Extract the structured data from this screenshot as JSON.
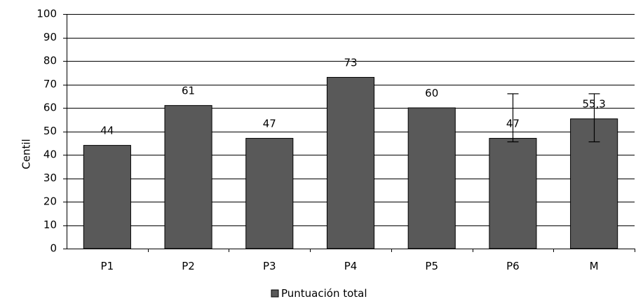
{
  "chart_data": {
    "type": "bar",
    "title": "",
    "xlabel": "",
    "ylabel": "Centil",
    "categories": [
      "P1",
      "P2",
      "P3",
      "P4",
      "P5",
      "P6",
      "M"
    ],
    "series": [
      {
        "name": "Puntuación total",
        "values": [
          44,
          61,
          47,
          73,
          60,
          47,
          55.3
        ],
        "data_labels": [
          "44",
          "61",
          "47",
          "73",
          "60",
          "47",
          "55,3"
        ],
        "color": "#595959",
        "error_bars": [
          null,
          null,
          null,
          null,
          null,
          {
            "low": 45.5,
            "high": 66
          },
          {
            "low": 45.5,
            "high": 66
          }
        ]
      }
    ],
    "ylim": [
      0,
      100
    ],
    "y_ticks": [
      0,
      10,
      20,
      30,
      40,
      50,
      60,
      70,
      80,
      90,
      100
    ],
    "grid": true,
    "legend_position": "bottom"
  }
}
